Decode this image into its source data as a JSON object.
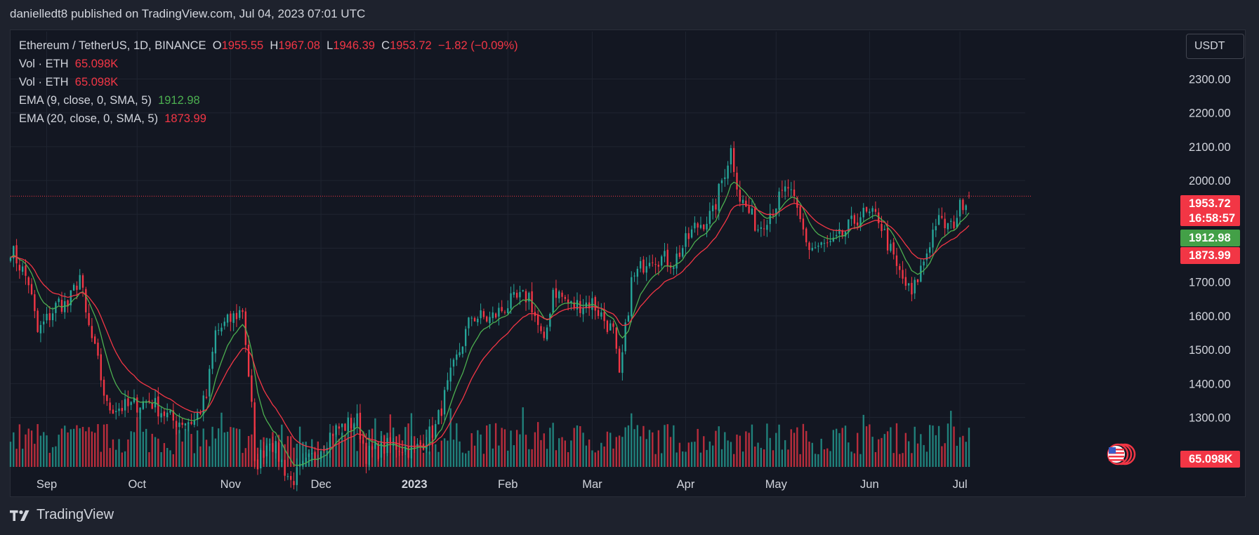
{
  "header": {
    "published": "danielledt8 published on TradingView.com, Jul 04, 2023 07:01 UTC"
  },
  "legend": {
    "symbol": "Ethereum / TetherUS, 1D, BINANCE",
    "o_label": "O",
    "o_value": "1955.55",
    "h_label": "H",
    "h_value": "1967.08",
    "l_label": "L",
    "l_value": "1946.39",
    "c_label": "C",
    "c_value": "1953.72",
    "change": "−1.82 (−0.09%)",
    "vol1_label": "Vol · ETH",
    "vol1_value": "65.098K",
    "vol2_label": "Vol · ETH",
    "vol2_value": "65.098K",
    "ema9_label": "EMA (9, close, 0, SMA, 5)",
    "ema9_value": "1912.98",
    "ema20_label": "EMA (20, close, 0, SMA, 5)",
    "ema20_value": "1873.99"
  },
  "currency_button": "USDT",
  "footer": {
    "brand": "TradingView"
  },
  "colors": {
    "up": "#26a69a",
    "down": "#f23645",
    "ema9": "#4caf50",
    "ema20": "#f23645",
    "background": "#131722",
    "grid": "#1f2430",
    "text": "#d1d4dc"
  },
  "icons": [
    "tradingview-logo-icon",
    "us-flag-icon"
  ],
  "chart_data": {
    "type": "candlestick",
    "title": "Ethereum / TetherUS, 1D, BINANCE",
    "y_ticks": [
      1300,
      1400,
      1500,
      1600,
      1700,
      1800,
      1900,
      2000,
      2100,
      2200,
      2300
    ],
    "y_tick_labels": [
      "1300.00",
      "1400.00",
      "1500.00",
      "1600.00",
      "1700.00",
      "1800.00",
      "1900.00",
      "2000.00",
      "2100.00",
      "2200.00",
      "2300.00"
    ],
    "ylim": [
      1160,
      2440
    ],
    "x_labels": [
      "Sep",
      "Oct",
      "Nov",
      "Dec",
      "2023",
      "Feb",
      "Mar",
      "Apr",
      "May",
      "Jun",
      "Jul"
    ],
    "x_label_dates": [
      "2022-09-01",
      "2022-10-01",
      "2022-11-01",
      "2022-12-01",
      "2023-01-01",
      "2023-02-01",
      "2023-03-01",
      "2023-04-01",
      "2023-05-01",
      "2023-06-01",
      "2023-07-01"
    ],
    "date_range": [
      "2022-08-20",
      "2023-07-04"
    ],
    "close_path": [
      [
        "2022-08-20",
        1800
      ],
      [
        "2022-08-26",
        1700
      ],
      [
        "2022-08-29",
        1550
      ],
      [
        "2022-09-05",
        1640
      ],
      [
        "2022-09-08",
        1630
      ],
      [
        "2022-09-12",
        1720
      ],
      [
        "2022-09-14",
        1600
      ],
      [
        "2022-09-18",
        1460
      ],
      [
        "2022-09-21",
        1330
      ],
      [
        "2022-09-28",
        1330
      ],
      [
        "2022-10-05",
        1350
      ],
      [
        "2022-10-13",
        1290
      ],
      [
        "2022-10-20",
        1290
      ],
      [
        "2022-10-24",
        1360
      ],
      [
        "2022-10-27",
        1550
      ],
      [
        "2022-10-31",
        1580
      ],
      [
        "2022-11-05",
        1620
      ],
      [
        "2022-11-08",
        1330
      ],
      [
        "2022-11-09",
        1150
      ],
      [
        "2022-11-14",
        1240
      ],
      [
        "2022-11-21",
        1110
      ],
      [
        "2022-11-28",
        1180
      ],
      [
        "2022-12-05",
        1260
      ],
      [
        "2022-12-13",
        1290
      ],
      [
        "2022-12-16",
        1190
      ],
      [
        "2022-12-25",
        1220
      ],
      [
        "2023-01-01",
        1200
      ],
      [
        "2023-01-08",
        1270
      ],
      [
        "2023-01-13",
        1420
      ],
      [
        "2023-01-20",
        1600
      ],
      [
        "2023-01-26",
        1590
      ],
      [
        "2023-02-02",
        1640
      ],
      [
        "2023-02-08",
        1660
      ],
      [
        "2023-02-13",
        1510
      ],
      [
        "2023-02-16",
        1680
      ],
      [
        "2023-02-22",
        1630
      ],
      [
        "2023-03-01",
        1640
      ],
      [
        "2023-03-08",
        1550
      ],
      [
        "2023-03-10",
        1410
      ],
      [
        "2023-03-14",
        1700
      ],
      [
        "2023-03-20",
        1780
      ],
      [
        "2023-03-28",
        1760
      ],
      [
        "2023-04-04",
        1860
      ],
      [
        "2023-04-10",
        1900
      ],
      [
        "2023-04-13",
        2000
      ],
      [
        "2023-04-16",
        2090
      ],
      [
        "2023-04-19",
        1950
      ],
      [
        "2023-04-25",
        1860
      ],
      [
        "2023-05-05",
        1980
      ],
      [
        "2023-05-12",
        1800
      ],
      [
        "2023-05-20",
        1810
      ],
      [
        "2023-05-29",
        1900
      ],
      [
        "2023-06-04",
        1890
      ],
      [
        "2023-06-10",
        1740
      ],
      [
        "2023-06-15",
        1660
      ],
      [
        "2023-06-20",
        1790
      ],
      [
        "2023-06-23",
        1880
      ],
      [
        "2023-06-28",
        1860
      ],
      [
        "2023-07-02",
        1940
      ],
      [
        "2023-07-04",
        1953.72
      ]
    ],
    "series": [
      {
        "name": "EMA (9, close, 0, SMA, 5)",
        "last": 1912.98
      },
      {
        "name": "EMA (20, close, 0, SMA, 5)",
        "last": 1873.99
      },
      {
        "name": "Vol · ETH",
        "last": "65.098K"
      }
    ],
    "last_price": 1953.72,
    "price_label": "1953.72",
    "countdown": "16:58:57",
    "ema9_label": "1912.98",
    "ema20_label": "1873.99",
    "volume_label": "65.098K"
  }
}
